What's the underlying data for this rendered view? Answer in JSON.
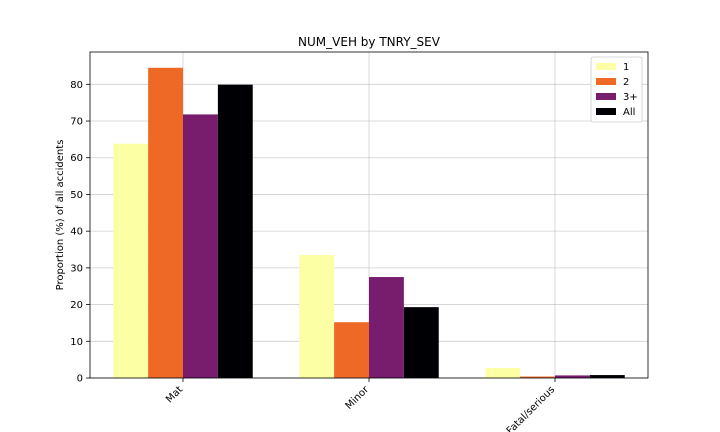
{
  "chart_data": {
    "type": "bar",
    "title": "NUM_VEH by TNRY_SEV",
    "xlabel": "",
    "ylabel": "Proportion (%) of all accidents",
    "categories": [
      "Mat",
      "Minor",
      "Fatal/serious"
    ],
    "series": [
      {
        "name": "1",
        "color": "#fcffa4",
        "values": [
          63.8,
          33.5,
          2.7
        ]
      },
      {
        "name": "2",
        "color": "#ed6925",
        "values": [
          84.5,
          15.2,
          0.4
        ]
      },
      {
        "name": "3+",
        "color": "#781c6d",
        "values": [
          71.8,
          27.5,
          0.7
        ]
      },
      {
        "name": "All",
        "color": "#000004",
        "values": [
          79.9,
          19.3,
          0.8
        ]
      }
    ],
    "ylim": [
      0,
      88.8
    ],
    "yticks": [
      0,
      10,
      20,
      30,
      40,
      50,
      60,
      70,
      80
    ],
    "grid": true,
    "legend_position": "top-right"
  }
}
